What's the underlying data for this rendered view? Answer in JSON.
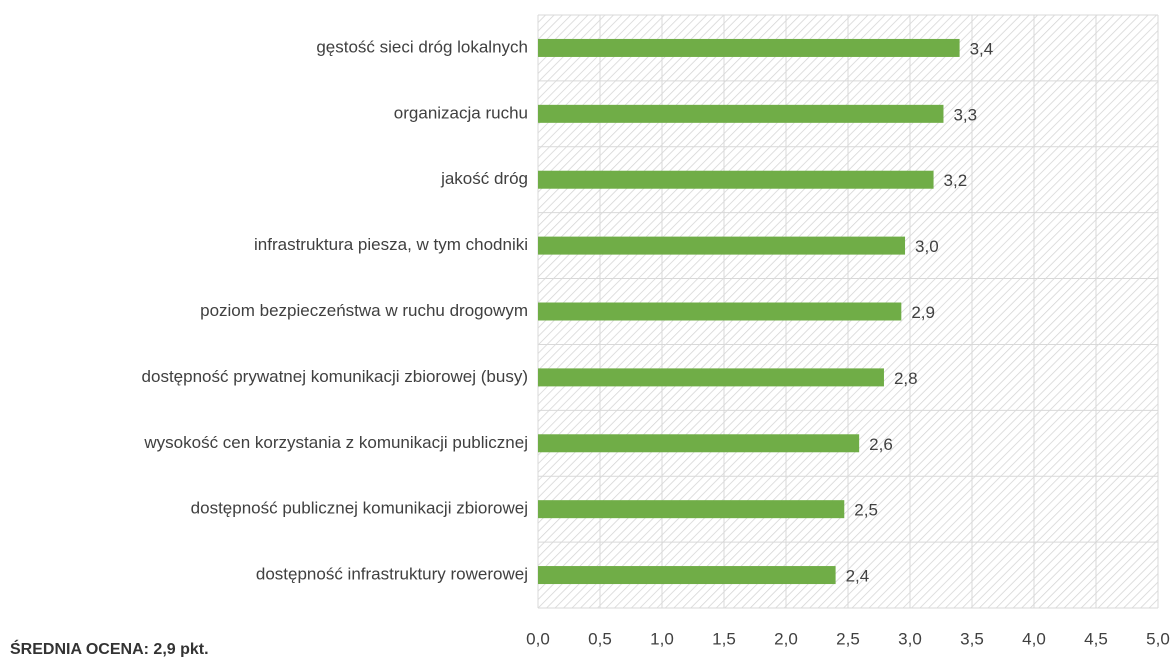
{
  "chart_data": {
    "type": "barh",
    "categories": [
      "gęstość sieci dróg lokalnych",
      "organizacja ruchu",
      "jakość dróg",
      "infrastruktura piesza, w tym chodniki",
      "poziom bezpieczeństwa w ruchu drogowym",
      "dostępność prywatnej komunikacji zbiorowej (busy)",
      "wysokość cen korzystania z komunikacji publicznej",
      "dostępność publicznej komunikacji zbiorowej",
      "dostępność infrastruktury rowerowej"
    ],
    "values": [
      3.4,
      3.27,
      3.19,
      2.96,
      2.93,
      2.79,
      2.59,
      2.47,
      2.4
    ],
    "value_labels": [
      "3,4",
      "3,3",
      "3,2",
      "3,0",
      "2,9",
      "2,8",
      "2,6",
      "2,5",
      "2,4"
    ],
    "color": "#70ad47",
    "xlim": [
      0,
      5
    ],
    "xticks": [
      {
        "value": 0,
        "label": "0,0"
      },
      {
        "value": 0.5,
        "label": "0,5"
      },
      {
        "value": 1,
        "label": "1,0"
      },
      {
        "value": 1.5,
        "label": "1,5"
      },
      {
        "value": 2,
        "label": "2,0"
      },
      {
        "value": 2.5,
        "label": "2,5"
      },
      {
        "value": 3,
        "label": "3,0"
      },
      {
        "value": 3.5,
        "label": "3,5"
      },
      {
        "value": 4,
        "label": "4,0"
      },
      {
        "value": 4.5,
        "label": "4,5"
      },
      {
        "value": 5,
        "label": "5,0"
      }
    ],
    "grid": true,
    "annotation": "ŚREDNIA OCENA: 2,9 pkt."
  }
}
